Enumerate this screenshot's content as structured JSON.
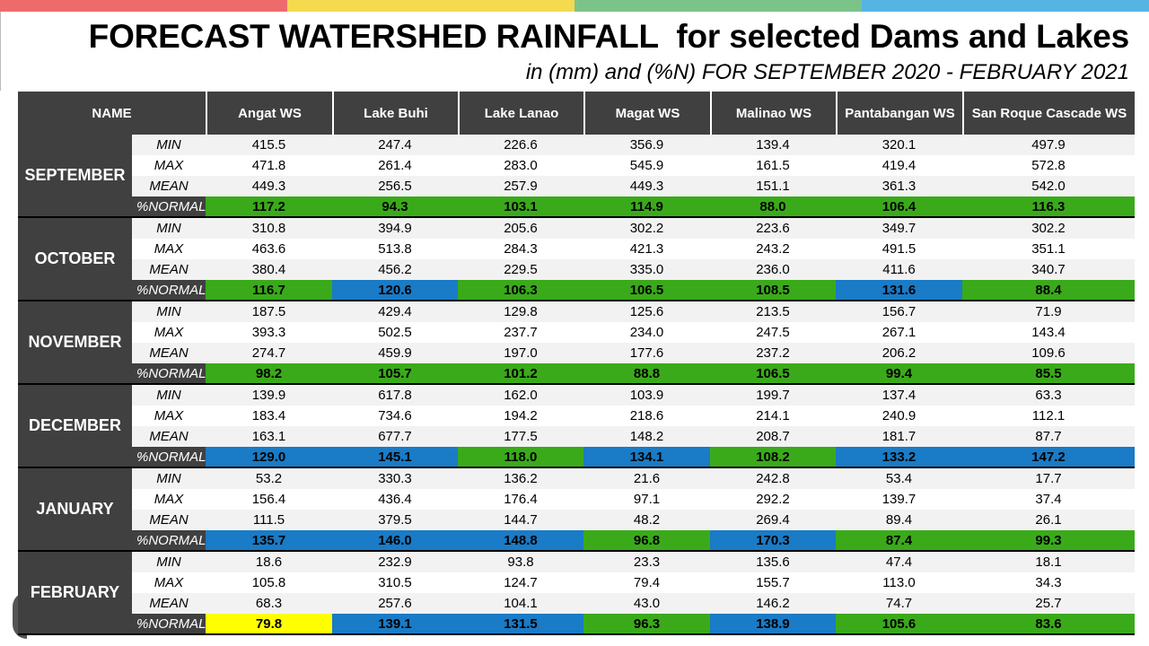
{
  "header": {
    "title": "FORECAST WATERSHED RAINFALL  for selected Dams and Lakes",
    "subtitle": "in (mm) and (%N) FOR SEPTEMBER 2020 - FEBRUARY 2021"
  },
  "colors": {
    "topbar": [
      "#ef6b6b",
      "#f5d94e",
      "#7cc38a",
      "#56b4e3"
    ],
    "header_bg": "#404040",
    "row_light": "#f2f2f2",
    "row_white": "#ffffff",
    "normal_green": "#3aaa1a",
    "above_blue": "#1a7bc6",
    "below_yellow": "#ffff00"
  },
  "table": {
    "name_header": "NAME",
    "columns": [
      "Angat WS",
      "Lake Buhi",
      "Lake Lanao",
      "Magat WS",
      "Malinao WS",
      "Pantabangan WS",
      "San Roque Cascade WS"
    ],
    "row_labels": [
      "MIN",
      "MAX",
      "MEAN",
      "%NORMAL"
    ],
    "months": [
      {
        "name": "SEPTEMBER",
        "min": [
          "415.5",
          "247.4",
          "226.6",
          "356.9",
          "139.4",
          "320.1",
          "497.9"
        ],
        "max": [
          "471.8",
          "261.4",
          "283.0",
          "545.9",
          "161.5",
          "419.4",
          "572.8"
        ],
        "mean": [
          "449.3",
          "256.5",
          "257.9",
          "449.3",
          "151.1",
          "361.3",
          "542.0"
        ],
        "normal": [
          "117.2",
          "94.3",
          "103.1",
          "114.9",
          "88.0",
          "106.4",
          "116.3"
        ],
        "normal_class": [
          "green",
          "green",
          "green",
          "green",
          "green",
          "green",
          "green"
        ]
      },
      {
        "name": "OCTOBER",
        "min": [
          "310.8",
          "394.9",
          "205.6",
          "302.2",
          "223.6",
          "349.7",
          "302.2"
        ],
        "max": [
          "463.6",
          "513.8",
          "284.3",
          "421.3",
          "243.2",
          "491.5",
          "351.1"
        ],
        "mean": [
          "380.4",
          "456.2",
          "229.5",
          "335.0",
          "236.0",
          "411.6",
          "340.7"
        ],
        "normal": [
          "116.7",
          "120.6",
          "106.3",
          "106.5",
          "108.5",
          "131.6",
          "88.4"
        ],
        "normal_class": [
          "green",
          "blue",
          "green",
          "green",
          "green",
          "blue",
          "green"
        ]
      },
      {
        "name": "NOVEMBER",
        "min": [
          "187.5",
          "429.4",
          "129.8",
          "125.6",
          "213.5",
          "156.7",
          "71.9"
        ],
        "max": [
          "393.3",
          "502.5",
          "237.7",
          "234.0",
          "247.5",
          "267.1",
          "143.4"
        ],
        "mean": [
          "274.7",
          "459.9",
          "197.0",
          "177.6",
          "237.2",
          "206.2",
          "109.6"
        ],
        "normal": [
          "98.2",
          "105.7",
          "101.2",
          "88.8",
          "106.5",
          "99.4",
          "85.5"
        ],
        "normal_class": [
          "green",
          "green",
          "green",
          "green",
          "green",
          "green",
          "green"
        ]
      },
      {
        "name": "DECEMBER",
        "min": [
          "139.9",
          "617.8",
          "162.0",
          "103.9",
          "199.7",
          "137.4",
          "63.3"
        ],
        "max": [
          "183.4",
          "734.6",
          "194.2",
          "218.6",
          "214.1",
          "240.9",
          "112.1"
        ],
        "mean": [
          "163.1",
          "677.7",
          "177.5",
          "148.2",
          "208.7",
          "181.7",
          "87.7"
        ],
        "normal": [
          "129.0",
          "145.1",
          "118.0",
          "134.1",
          "108.2",
          "133.2",
          "147.2"
        ],
        "normal_class": [
          "blue",
          "blue",
          "green",
          "blue",
          "green",
          "blue",
          "blue"
        ]
      },
      {
        "name": "JANUARY",
        "min": [
          "53.2",
          "330.3",
          "136.2",
          "21.6",
          "242.8",
          "53.4",
          "17.7"
        ],
        "max": [
          "156.4",
          "436.4",
          "176.4",
          "97.1",
          "292.2",
          "139.7",
          "37.4"
        ],
        "mean": [
          "111.5",
          "379.5",
          "144.7",
          "48.2",
          "269.4",
          "89.4",
          "26.1"
        ],
        "normal": [
          "135.7",
          "146.0",
          "148.8",
          "96.8",
          "170.3",
          "87.4",
          "99.3"
        ],
        "normal_class": [
          "blue",
          "blue",
          "blue",
          "green",
          "blue",
          "green",
          "green"
        ]
      },
      {
        "name": "FEBRUARY",
        "min": [
          "18.6",
          "232.9",
          "93.8",
          "23.3",
          "135.6",
          "47.4",
          "18.1"
        ],
        "max": [
          "105.8",
          "310.5",
          "124.7",
          "79.4",
          "155.7",
          "113.0",
          "34.3"
        ],
        "mean": [
          "68.3",
          "257.6",
          "104.1",
          "43.0",
          "146.2",
          "74.7",
          "25.7"
        ],
        "normal": [
          "79.8",
          "139.1",
          "131.5",
          "96.3",
          "138.9",
          "105.6",
          "83.6"
        ],
        "normal_class": [
          "yellow",
          "blue",
          "blue",
          "green",
          "blue",
          "green",
          "green"
        ]
      }
    ]
  }
}
